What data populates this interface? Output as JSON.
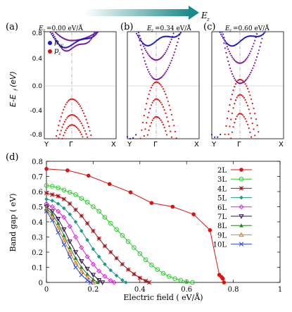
{
  "header": {
    "field_arrow_label": "E",
    "field_arrow_sub": "z"
  },
  "band_panels": [
    {
      "id": "a",
      "letter": "(a)",
      "field_label": "E",
      "field_sub": "z",
      "field_value": "=0.00 eV/Å",
      "ylabel": "E-E",
      "ylabel_sub": "f",
      "ylabel_unit": "(eV)",
      "ylim": [
        -0.9,
        0.8
      ],
      "yticks": [
        "0.8",
        "0.4",
        "0.0",
        "-0.4",
        "-0.8"
      ],
      "xticks": [
        "Y",
        "Γ",
        "X"
      ],
      "legend": [
        {
          "label": "p",
          "sub": "xy",
          "color": "#1a1acc"
        },
        {
          "label": "p",
          "sub": "z",
          "color": "#e01010"
        }
      ]
    },
    {
      "id": "b",
      "letter": "(b)",
      "field_label": "E",
      "field_sub": "z",
      "field_value": "=0.34 eV/Å",
      "ylim": [
        -0.9,
        0.8
      ],
      "xticks": [
        "Y",
        "Γ",
        "X"
      ]
    },
    {
      "id": "c",
      "letter": "(c)",
      "field_label": "E",
      "field_sub": "z",
      "field_value": "=0.60 eV/Å",
      "ylim": [
        -0.9,
        0.8
      ],
      "xticks": [
        "Y",
        "Γ",
        "X"
      ]
    }
  ],
  "colors": {
    "pxy": "#1a1acc",
    "pz": "#e01010",
    "mixed": "#7a1a9a",
    "arrow": "#1c8a8a"
  },
  "chart_data": {
    "panel": "(d)",
    "type": "line",
    "title": "",
    "xlabel": "Electric field ( eV/Å)",
    "ylabel": "Band gap  ( eV)",
    "xlim": [
      0,
      1
    ],
    "ylim": [
      0,
      0.8
    ],
    "xticks": [
      0,
      0.2,
      0.4,
      0.6,
      0.8,
      1
    ],
    "yticks": [
      0,
      0.1,
      0.2,
      0.3,
      0.4,
      0.5,
      0.6,
      0.7,
      0.8
    ],
    "legend_position": "top-right",
    "series": [
      {
        "name": "2L",
        "color": "#e01010",
        "marker": "circle-filled",
        "x": [
          0,
          0.09,
          0.18,
          0.27,
          0.36,
          0.45,
          0.54,
          0.63,
          0.7,
          0.74,
          0.75,
          0.755,
          0.76
        ],
        "y": [
          0.75,
          0.74,
          0.705,
          0.65,
          0.595,
          0.525,
          0.5,
          0.45,
          0.345,
          0.05,
          0.035,
          0.025,
          0.0
        ]
      },
      {
        "name": "3L",
        "color": "#2ecc2e",
        "marker": "circle-open",
        "x": [
          0,
          0.025,
          0.05,
          0.075,
          0.1,
          0.125,
          0.15,
          0.175,
          0.2,
          0.225,
          0.25,
          0.275,
          0.3,
          0.325,
          0.35,
          0.375,
          0.4,
          0.425,
          0.45,
          0.475,
          0.5,
          0.525,
          0.55,
          0.575,
          0.6,
          0.625
        ],
        "y": [
          0.64,
          0.635,
          0.625,
          0.61,
          0.595,
          0.58,
          0.555,
          0.53,
          0.5,
          0.47,
          0.43,
          0.39,
          0.35,
          0.31,
          0.27,
          0.23,
          0.19,
          0.15,
          0.115,
          0.085,
          0.06,
          0.04,
          0.025,
          0.015,
          0.005,
          0.0
        ]
      },
      {
        "name": "4L",
        "color": "#a01818",
        "marker": "star",
        "x": [
          0,
          0.025,
          0.05,
          0.075,
          0.1,
          0.125,
          0.15,
          0.175,
          0.2,
          0.225,
          0.25,
          0.275,
          0.3,
          0.325,
          0.35,
          0.375,
          0.4,
          0.425,
          0.44
        ],
        "y": [
          0.59,
          0.58,
          0.57,
          0.55,
          0.52,
          0.48,
          0.44,
          0.39,
          0.34,
          0.29,
          0.24,
          0.2,
          0.16,
          0.12,
          0.085,
          0.055,
          0.03,
          0.01,
          0.0
        ]
      },
      {
        "name": "5L",
        "color": "#1a9a8a",
        "marker": "diamond-filled",
        "x": [
          0,
          0.025,
          0.05,
          0.075,
          0.1,
          0.125,
          0.15,
          0.175,
          0.2,
          0.225,
          0.25,
          0.275,
          0.3,
          0.325,
          0.34
        ],
        "y": [
          0.55,
          0.54,
          0.52,
          0.49,
          0.45,
          0.4,
          0.34,
          0.28,
          0.22,
          0.17,
          0.12,
          0.08,
          0.045,
          0.015,
          0.0
        ]
      },
      {
        "name": "6L",
        "color": "#e020e0",
        "marker": "diamond-open",
        "x": [
          0,
          0.025,
          0.05,
          0.075,
          0.1,
          0.125,
          0.15,
          0.175,
          0.2,
          0.225,
          0.25,
          0.275,
          0.29
        ],
        "y": [
          0.52,
          0.5,
          0.47,
          0.43,
          0.37,
          0.3,
          0.23,
          0.17,
          0.12,
          0.075,
          0.04,
          0.012,
          0.0
        ]
      },
      {
        "name": "7L",
        "color": "#301050",
        "marker": "triangle-down-open",
        "x": [
          0,
          0.025,
          0.05,
          0.075,
          0.1,
          0.125,
          0.15,
          0.175,
          0.2,
          0.225,
          0.24
        ],
        "y": [
          0.5,
          0.47,
          0.42,
          0.35,
          0.27,
          0.2,
          0.14,
          0.09,
          0.05,
          0.015,
          0.0
        ]
      },
      {
        "name": "8L",
        "color": "#208020",
        "marker": "triangle-up-filled",
        "x": [
          0,
          0.025,
          0.05,
          0.075,
          0.1,
          0.125,
          0.15,
          0.175,
          0.2,
          0.22
        ],
        "y": [
          0.49,
          0.45,
          0.39,
          0.31,
          0.23,
          0.16,
          0.1,
          0.055,
          0.02,
          0.0
        ]
      },
      {
        "name": "9L",
        "color": "#e08020",
        "marker": "triangle-up-open",
        "x": [
          0,
          0.025,
          0.05,
          0.075,
          0.1,
          0.125,
          0.15,
          0.175,
          0.2
        ],
        "y": [
          0.48,
          0.43,
          0.36,
          0.28,
          0.2,
          0.13,
          0.075,
          0.035,
          0.0
        ]
      },
      {
        "name": "10L",
        "color": "#3050e0",
        "marker": "x",
        "x": [
          0,
          0.025,
          0.05,
          0.075,
          0.1,
          0.125,
          0.15,
          0.175,
          0.19
        ],
        "y": [
          0.47,
          0.41,
          0.33,
          0.25,
          0.17,
          0.1,
          0.05,
          0.015,
          0.0
        ]
      }
    ]
  }
}
